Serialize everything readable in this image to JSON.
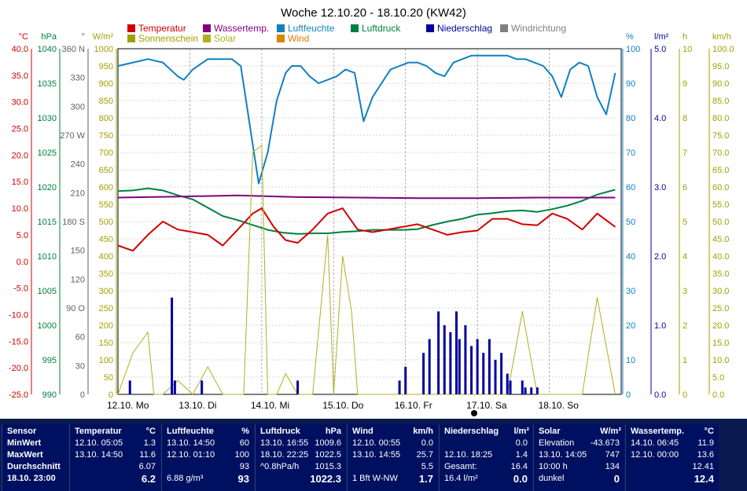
{
  "title": "Woche 12.10.20 - 18.10.20 (KW42)",
  "legend": [
    {
      "label": "Temperatur",
      "color": "#d00000"
    },
    {
      "label": "Wassertemp.",
      "color": "#800080"
    },
    {
      "label": "Luftfeuchte",
      "color": "#1080c0"
    },
    {
      "label": "Luftdruck",
      "color": "#008040"
    },
    {
      "label": "Niederschlag",
      "color": "#0000a0"
    },
    {
      "label": "Windrichtung",
      "color": "#808080"
    },
    {
      "label": "Sonnenschein",
      "color": "#a0a000"
    },
    {
      "label": "Solar",
      "color": "#b0b020"
    },
    {
      "label": "Wind",
      "color": "#e08000"
    }
  ],
  "axes": {
    "temp": {
      "unit": "°C",
      "color": "#d00000",
      "ticks": [
        "40.0",
        "35.0",
        "30.0",
        "25.0",
        "20.0",
        "15.0",
        "10.0",
        "5.0",
        "0.0",
        "-5.0",
        "-10.0",
        "-15.0",
        "-20.0",
        "-25.0"
      ]
    },
    "pressure": {
      "unit": "hPa",
      "color": "#008040",
      "ticks": [
        "1040",
        "1035",
        "1030",
        "1025",
        "1020",
        "1015",
        "1010",
        "1005",
        "1000",
        "995",
        "990"
      ]
    },
    "winddir": {
      "unit": "°",
      "color": "#606060",
      "ticks": [
        "360 N",
        "330",
        "300",
        "270 W",
        "240",
        "210",
        "180 S",
        "150",
        "120",
        "90 O",
        "60",
        "30",
        "0"
      ]
    },
    "solar": {
      "unit": "W/m²",
      "color": "#a0a000",
      "ticks": [
        "1000",
        "950",
        "900",
        "850",
        "800",
        "750",
        "700",
        "650",
        "600",
        "550",
        "500",
        "450",
        "400",
        "350",
        "300",
        "250",
        "200",
        "150",
        "100",
        "50",
        "0"
      ]
    },
    "humidity": {
      "unit": "%",
      "color": "#1080c0",
      "ticks": [
        "100",
        "90",
        "80",
        "70",
        "60",
        "50",
        "40",
        "30",
        "20",
        "10",
        "0"
      ]
    },
    "rain": {
      "unit": "l/m²",
      "color": "#0000a0",
      "ticks": [
        "5.0",
        "4.0",
        "3.0",
        "2.0",
        "1.0",
        "0.0"
      ]
    },
    "sunhours": {
      "unit": "h",
      "color": "#a0a000",
      "ticks": [
        "10",
        "9",
        "8",
        "7",
        "6",
        "5",
        "4",
        "3",
        "2",
        "1",
        "0"
      ]
    },
    "wind": {
      "unit": "km/h",
      "color": "#a0a000",
      "ticks": [
        "100.0",
        "95.0",
        "90.0",
        "85.0",
        "80.0",
        "75.0",
        "70.0",
        "65.0",
        "60.0",
        "55.0",
        "50.0",
        "45.0",
        "40.0",
        "35.0",
        "30.0",
        "25.0",
        "20.0",
        "15.0",
        "10.0",
        "5.0",
        "0.0"
      ]
    }
  },
  "days": [
    "12.10. Mo",
    "13.10. Di",
    "14.10. Mi",
    "15.10. Do",
    "16.10. Fr",
    "17.10. Sa",
    "18.10. So"
  ],
  "chart_data": {
    "type": "line",
    "title": "Woche 12.10.20 - 18.10.20 (KW42)",
    "x_unit": "hours since 12.10. 00:00",
    "series": [
      {
        "name": "Luftfeuchte",
        "axis": "humidity",
        "color": "#1080c0",
        "x": [
          0,
          5,
          10,
          15,
          20,
          22,
          25,
          30,
          35,
          38,
          41,
          44,
          47,
          50,
          53,
          56,
          58,
          61,
          64,
          67,
          70,
          73,
          76,
          79,
          82,
          85,
          88,
          91,
          94,
          97,
          100,
          103,
          106,
          109,
          112,
          115,
          118,
          121,
          124,
          127,
          130,
          133,
          136,
          139,
          142,
          145,
          148,
          151,
          154,
          157,
          160,
          163,
          166
        ],
        "y": [
          95,
          96,
          97,
          96,
          92,
          91,
          94,
          97,
          97,
          97,
          95,
          78,
          61,
          70,
          85,
          93,
          95,
          95,
          92,
          90,
          91,
          92,
          94,
          93,
          79,
          86,
          90,
          94,
          95,
          96,
          96,
          95,
          93,
          92,
          96,
          97,
          98,
          98,
          98,
          98,
          98,
          97,
          97,
          96,
          95,
          92,
          86,
          94,
          96,
          95,
          86,
          81,
          93
        ]
      },
      {
        "name": "Luftdruck",
        "axis": "pressure",
        "color": "#008040",
        "x": [
          0,
          5,
          10,
          15,
          20,
          25,
          30,
          35,
          40,
          45,
          50,
          55,
          60,
          65,
          70,
          75,
          80,
          85,
          90,
          95,
          100,
          105,
          110,
          115,
          120,
          125,
          130,
          135,
          140,
          145,
          150,
          155,
          160,
          166
        ],
        "y": [
          1019.4,
          1019.5,
          1019.8,
          1019.5,
          1018.8,
          1018.2,
          1017.0,
          1015.8,
          1015.2,
          1014.5,
          1013.8,
          1013.4,
          1013.2,
          1013.3,
          1013.3,
          1013.5,
          1013.6,
          1013.8,
          1013.8,
          1013.8,
          1013.9,
          1014.5,
          1015.0,
          1015.4,
          1016.0,
          1016.2,
          1016.5,
          1016.6,
          1016.4,
          1016.8,
          1017.3,
          1018.0,
          1018.9,
          1019.6
        ]
      },
      {
        "name": "Temperatur",
        "axis": "temp",
        "color": "#d00000",
        "x": [
          0,
          5,
          10,
          15,
          20,
          25,
          30,
          35,
          40,
          45,
          48,
          52,
          56,
          60,
          65,
          70,
          75,
          80,
          85,
          90,
          95,
          100,
          105,
          110,
          115,
          120,
          125,
          130,
          135,
          140,
          145,
          150,
          155,
          160,
          166
        ],
        "y": [
          3.0,
          2.0,
          5.0,
          7.5,
          6.0,
          5.5,
          5.0,
          3.0,
          6.0,
          9.0,
          10.0,
          6.5,
          4.0,
          3.5,
          6.0,
          9.0,
          10.0,
          6.0,
          5.5,
          6.0,
          6.5,
          7.0,
          6.0,
          5.0,
          5.5,
          5.8,
          8.0,
          8.0,
          7.0,
          6.8,
          9.0,
          8.0,
          6.0,
          9.0,
          6.5
        ]
      },
      {
        "name": "Wassertemp.",
        "axis": "temp",
        "color": "#800080",
        "x": [
          0,
          20,
          40,
          60,
          80,
          100,
          120,
          140,
          166
        ],
        "y": [
          12.0,
          12.2,
          12.4,
          12.1,
          12.0,
          11.9,
          11.9,
          12.0,
          12.0
        ]
      },
      {
        "name": "Solar",
        "axis": "solar",
        "color": "#b0b020",
        "x": [
          0,
          5,
          10,
          12,
          15,
          20,
          25,
          30,
          35,
          38,
          42,
          45,
          48,
          50,
          53,
          56,
          60,
          65,
          70,
          72,
          75,
          78,
          80,
          85,
          90,
          95,
          100,
          105,
          110,
          115,
          120,
          125,
          130,
          135,
          140,
          145,
          150,
          155,
          160,
          166
        ],
        "y": [
          0,
          120,
          180,
          0,
          0,
          40,
          0,
          80,
          0,
          0,
          0,
          700,
          720,
          0,
          0,
          60,
          0,
          0,
          460,
          0,
          400,
          240,
          0,
          0,
          0,
          0,
          0,
          0,
          0,
          0,
          0,
          0,
          0,
          240,
          0,
          0,
          0,
          0,
          280,
          0
        ]
      },
      {
        "name": "Niederschlag",
        "axis": "rain",
        "color": "#0000a0",
        "x": [
          4,
          18,
          19,
          28,
          60,
          94,
          96,
          102,
          104,
          107,
          109,
          111,
          113,
          114,
          116,
          118,
          120,
          122,
          124,
          126,
          128,
          130,
          131,
          135,
          136,
          138,
          140
        ],
        "y": [
          0.2,
          1.4,
          0.2,
          0.2,
          0.2,
          0.2,
          0.4,
          0.6,
          0.8,
          1.2,
          1.0,
          0.9,
          1.2,
          0.8,
          1.0,
          0.7,
          0.8,
          0.6,
          0.8,
          0.5,
          0.6,
          0.3,
          0.2,
          0.2,
          0.1,
          0.1,
          0.1
        ]
      }
    ]
  },
  "stats": {
    "headers": {
      "sensor": "Sensor",
      "temp": "Temperatur",
      "temp_unit": "°C",
      "hum": "Luftfeuchte",
      "hum_unit": "%",
      "press": "Luftdruck",
      "press_unit": "hPa",
      "wind": "Wind",
      "wind_unit": "km/h",
      "rain": "Niederschlag",
      "rain_unit": "l/m²",
      "solar": "Solar",
      "solar_unit": "W/m²",
      "water": "Wassertemp.",
      "water_unit": "°C"
    },
    "labels": [
      "MinWert",
      "MaxWert",
      "Durchschnitt",
      "18.10. 23:00"
    ],
    "temp": [
      [
        "12.10. 05:05",
        "1.3"
      ],
      [
        "13.10. 14:50",
        "11.6"
      ],
      [
        "",
        "6.07"
      ],
      [
        "",
        "6.2"
      ]
    ],
    "hum": [
      [
        "13.10. 14:50",
        "60"
      ],
      [
        "12.10. 01:10",
        "100"
      ],
      [
        "",
        "93"
      ],
      [
        "6.88 g/m³",
        "93"
      ]
    ],
    "press": [
      [
        "13.10. 16:55",
        "1009.6"
      ],
      [
        "18.10. 22:25",
        "1022.5"
      ],
      [
        "^0.8hPa/h",
        "1015.3"
      ],
      [
        "",
        "1022.3"
      ]
    ],
    "wind": [
      [
        "12.10. 00:55",
        "0.0"
      ],
      [
        "13.10. 14:55",
        "25.7"
      ],
      [
        "",
        "5.5"
      ],
      [
        "1 Bft W-NW",
        "1.7"
      ]
    ],
    "rain": [
      [
        "",
        "0.0"
      ],
      [
        "12.10. 18:25",
        "1.4"
      ],
      [
        "Gesamt:",
        "16.4"
      ],
      [
        "16.4 l/m²",
        "0.0"
      ]
    ],
    "solar": [
      [
        "Elevation",
        "-43.673"
      ],
      [
        "13.10. 14:05",
        "747"
      ],
      [
        "10:00 h",
        "134"
      ],
      [
        "dunkel",
        "0"
      ]
    ],
    "water": [
      [
        "14.10. 06:45",
        "11.9"
      ],
      [
        "12.10. 00:00",
        "13.6"
      ],
      [
        "",
        "12.41"
      ],
      [
        "",
        "12.4"
      ]
    ]
  }
}
